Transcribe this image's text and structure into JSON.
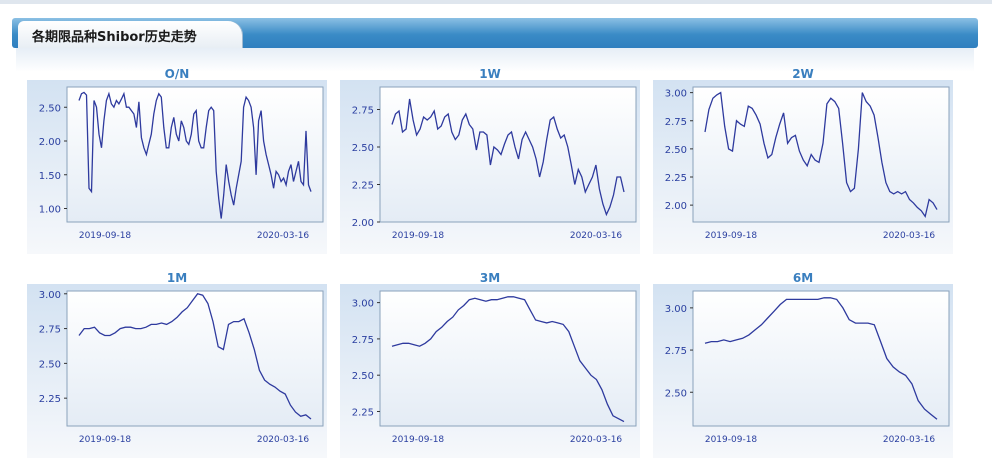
{
  "header": {
    "title": "各期限品种Shibor历史走势"
  },
  "chart_data": [
    {
      "type": "line",
      "title": "O/N",
      "x_ticks": [
        "2019-09-18",
        "2020-03-16"
      ],
      "yticks": [
        "1.00",
        "1.50",
        "2.00",
        "2.50"
      ],
      "ylim": [
        0.8,
        2.8
      ],
      "values": [
        2.6,
        2.7,
        2.72,
        2.68,
        1.3,
        1.25,
        2.6,
        2.5,
        2.1,
        1.9,
        2.3,
        2.6,
        2.7,
        2.55,
        2.5,
        2.6,
        2.55,
        2.62,
        2.7,
        2.5,
        2.5,
        2.45,
        2.4,
        2.2,
        2.58,
        2.05,
        1.9,
        1.8,
        1.95,
        2.1,
        2.4,
        2.6,
        2.7,
        2.65,
        2.2,
        1.9,
        1.9,
        2.2,
        2.35,
        2.1,
        2.0,
        2.3,
        2.2,
        2.0,
        1.95,
        2.1,
        2.4,
        2.45,
        2.0,
        1.9,
        1.9,
        2.2,
        2.45,
        2.5,
        2.45,
        1.55,
        1.15,
        0.85,
        1.2,
        1.65,
        1.4,
        1.2,
        1.05,
        1.3,
        1.5,
        1.7,
        2.5,
        2.65,
        2.6,
        2.5,
        2.2,
        1.5,
        2.3,
        2.45,
        2.0,
        1.8,
        1.65,
        1.5,
        1.3,
        1.55,
        1.5,
        1.4,
        1.45,
        1.35,
        1.55,
        1.65,
        1.4,
        1.55,
        1.7,
        1.4,
        1.35,
        2.15,
        1.35,
        1.25
      ]
    },
    {
      "type": "line",
      "title": "1W",
      "x_ticks": [
        "2019-09-18",
        "2020-03-16"
      ],
      "yticks": [
        "2.00",
        "2.25",
        "2.50",
        "2.75"
      ],
      "ylim": [
        2.0,
        2.9
      ],
      "values": [
        2.65,
        2.72,
        2.74,
        2.6,
        2.62,
        2.82,
        2.68,
        2.58,
        2.62,
        2.7,
        2.68,
        2.7,
        2.74,
        2.62,
        2.64,
        2.7,
        2.72,
        2.6,
        2.55,
        2.58,
        2.68,
        2.72,
        2.65,
        2.62,
        2.48,
        2.6,
        2.6,
        2.58,
        2.38,
        2.5,
        2.48,
        2.45,
        2.52,
        2.58,
        2.6,
        2.5,
        2.42,
        2.55,
        2.6,
        2.55,
        2.5,
        2.42,
        2.3,
        2.4,
        2.55,
        2.68,
        2.7,
        2.62,
        2.56,
        2.58,
        2.5,
        2.38,
        2.25,
        2.35,
        2.3,
        2.2,
        2.25,
        2.3,
        2.38,
        2.22,
        2.12,
        2.05,
        2.1,
        2.18,
        2.3,
        2.3,
        2.2
      ]
    },
    {
      "type": "line",
      "title": "2W",
      "x_ticks": [
        "2019-09-18",
        "2020-03-16"
      ],
      "yticks": [
        "2.00",
        "2.25",
        "2.50",
        "2.75",
        "3.00"
      ],
      "ylim": [
        1.85,
        3.05
      ],
      "values": [
        2.65,
        2.85,
        2.95,
        2.98,
        3.0,
        2.7,
        2.5,
        2.48,
        2.75,
        2.72,
        2.7,
        2.88,
        2.86,
        2.8,
        2.72,
        2.55,
        2.42,
        2.45,
        2.6,
        2.72,
        2.82,
        2.55,
        2.6,
        2.62,
        2.48,
        2.4,
        2.35,
        2.45,
        2.4,
        2.38,
        2.55,
        2.9,
        2.95,
        2.92,
        2.86,
        2.55,
        2.2,
        2.12,
        2.15,
        2.5,
        3.0,
        2.92,
        2.88,
        2.8,
        2.6,
        2.38,
        2.2,
        2.12,
        2.1,
        2.12,
        2.1,
        2.12,
        2.05,
        2.02,
        1.98,
        1.95,
        1.9,
        2.05,
        2.02,
        1.96
      ]
    },
    {
      "type": "line",
      "title": "1M",
      "x_ticks": [
        "2019-09-18",
        "2020-03-16"
      ],
      "yticks": [
        "2.25",
        "2.50",
        "2.75",
        "3.00"
      ],
      "ylim": [
        2.05,
        3.02
      ],
      "values": [
        2.7,
        2.75,
        2.75,
        2.76,
        2.72,
        2.7,
        2.7,
        2.72,
        2.75,
        2.76,
        2.76,
        2.75,
        2.75,
        2.76,
        2.78,
        2.78,
        2.79,
        2.78,
        2.8,
        2.83,
        2.87,
        2.9,
        2.95,
        3.0,
        2.99,
        2.93,
        2.8,
        2.62,
        2.6,
        2.78,
        2.8,
        2.8,
        2.82,
        2.72,
        2.6,
        2.45,
        2.38,
        2.35,
        2.33,
        2.3,
        2.28,
        2.2,
        2.15,
        2.12,
        2.13,
        2.1
      ]
    },
    {
      "type": "line",
      "title": "3M",
      "x_ticks": [
        "2019-09-18",
        "2020-03-16"
      ],
      "yticks": [
        "2.25",
        "2.50",
        "2.75",
        "3.00"
      ],
      "ylim": [
        2.15,
        3.08
      ],
      "values": [
        2.7,
        2.71,
        2.72,
        2.72,
        2.71,
        2.7,
        2.72,
        2.75,
        2.8,
        2.83,
        2.87,
        2.9,
        2.95,
        2.98,
        3.02,
        3.03,
        3.02,
        3.01,
        3.02,
        3.02,
        3.03,
        3.04,
        3.04,
        3.03,
        3.02,
        2.95,
        2.88,
        2.87,
        2.86,
        2.87,
        2.86,
        2.85,
        2.8,
        2.7,
        2.6,
        2.55,
        2.5,
        2.47,
        2.4,
        2.3,
        2.22,
        2.2,
        2.18
      ]
    },
    {
      "type": "line",
      "title": "6M",
      "x_ticks": [
        "2019-09-18",
        "2020-03-16"
      ],
      "yticks": [
        "2.50",
        "2.75",
        "3.00"
      ],
      "ylim": [
        2.3,
        3.1
      ],
      "values": [
        2.79,
        2.8,
        2.8,
        2.81,
        2.8,
        2.81,
        2.82,
        2.84,
        2.87,
        2.9,
        2.94,
        2.98,
        3.02,
        3.05,
        3.05,
        3.05,
        3.05,
        3.05,
        3.05,
        3.06,
        3.06,
        3.05,
        3.0,
        2.93,
        2.91,
        2.91,
        2.91,
        2.9,
        2.8,
        2.7,
        2.65,
        2.62,
        2.6,
        2.55,
        2.45,
        2.4,
        2.37,
        2.34
      ]
    }
  ]
}
